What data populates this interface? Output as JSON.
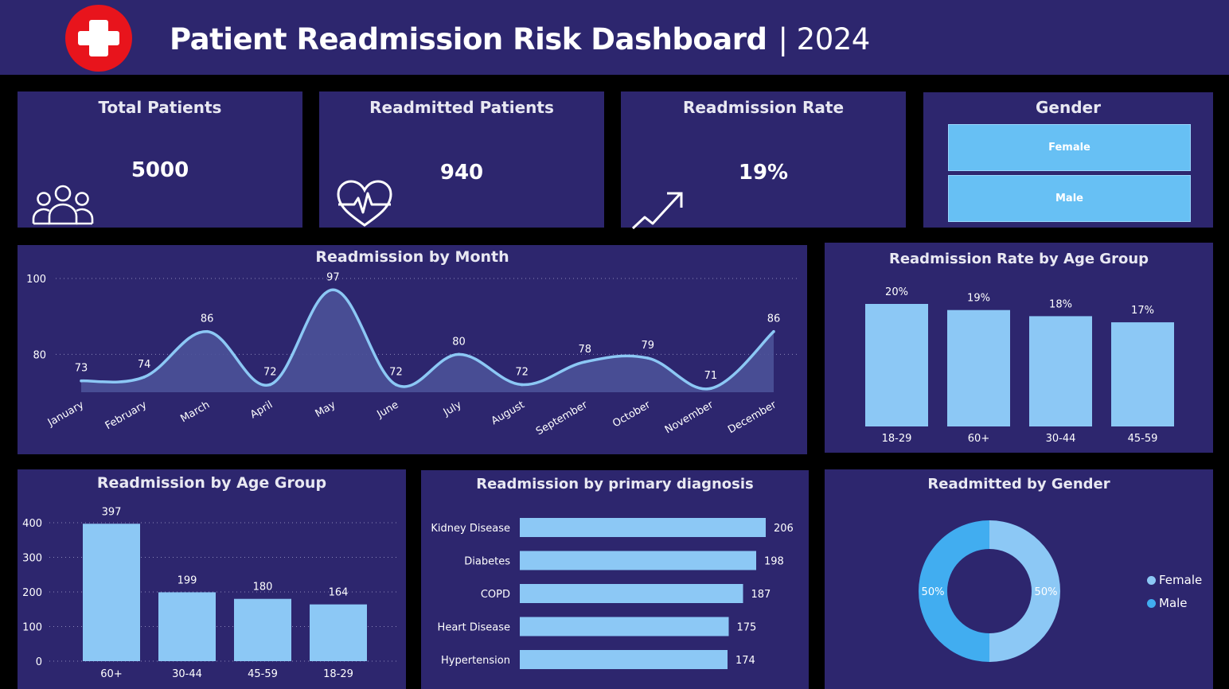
{
  "header": {
    "title": "Patient Readmission Risk Dashboard",
    "year": "| 2024",
    "logo_icon": "medical-cross-icon",
    "logo_color": "#e8141c"
  },
  "kpis": {
    "total_patients": {
      "label": "Total Patients",
      "value": "5000",
      "icon": "people-icon"
    },
    "readmitted_patients": {
      "label": "Readmitted Patients",
      "value": "940",
      "icon": "heartbeat-icon"
    },
    "readmission_rate": {
      "label": "Readmission Rate",
      "value": "19%",
      "icon": "trend-up-arrow-icon"
    }
  },
  "gender_slicer": {
    "label": "Gender",
    "options": [
      "Female",
      "Male"
    ]
  },
  "colors": {
    "background": "#000000",
    "panel": "#2d266e",
    "bar": "#8cc8f5",
    "line": "#8cc8f5",
    "area": "#4b5298",
    "female": "#8cc8f5",
    "male": "#41adf0"
  },
  "chart_data": [
    {
      "type": "area",
      "title": "Readmission by Month",
      "categories": [
        "January",
        "February",
        "March",
        "April",
        "May",
        "June",
        "July",
        "August",
        "September",
        "October",
        "November",
        "December"
      ],
      "values": [
        73,
        74,
        86,
        72,
        97,
        72,
        80,
        72,
        78,
        79,
        71,
        86
      ],
      "yticks": [
        80,
        100
      ],
      "ylim": [
        70,
        100
      ],
      "grid": true
    },
    {
      "type": "bar",
      "title": "Readmission Rate by Age Group",
      "categories": [
        "18-29",
        "60+",
        "30-44",
        "45-59"
      ],
      "values": [
        20,
        19,
        18,
        17
      ],
      "value_labels": [
        "20%",
        "19%",
        "18%",
        "17%"
      ],
      "ylim": [
        0,
        20
      ],
      "grid": false
    },
    {
      "type": "bar",
      "title": "Readmission by Age Group",
      "categories": [
        "60+",
        "30-44",
        "45-59",
        "18-29"
      ],
      "values": [
        397,
        199,
        180,
        164
      ],
      "yticks": [
        0,
        100,
        200,
        300,
        400
      ],
      "ylim": [
        0,
        400
      ],
      "grid": true
    },
    {
      "type": "bar",
      "orientation": "horizontal",
      "title": "Readmission by primary diagnosis",
      "categories": [
        "Kidney Disease",
        "Diabetes",
        "COPD",
        "Heart Disease",
        "Hypertension"
      ],
      "values": [
        206,
        198,
        187,
        175,
        174
      ],
      "xlim": [
        0,
        206
      ],
      "grid": false
    },
    {
      "type": "pie",
      "donut": true,
      "title": "Readmitted by Gender",
      "labels": [
        "Female",
        "Male"
      ],
      "values": [
        50,
        50
      ],
      "value_labels": [
        "50%",
        "50%"
      ],
      "legend": "right"
    }
  ]
}
